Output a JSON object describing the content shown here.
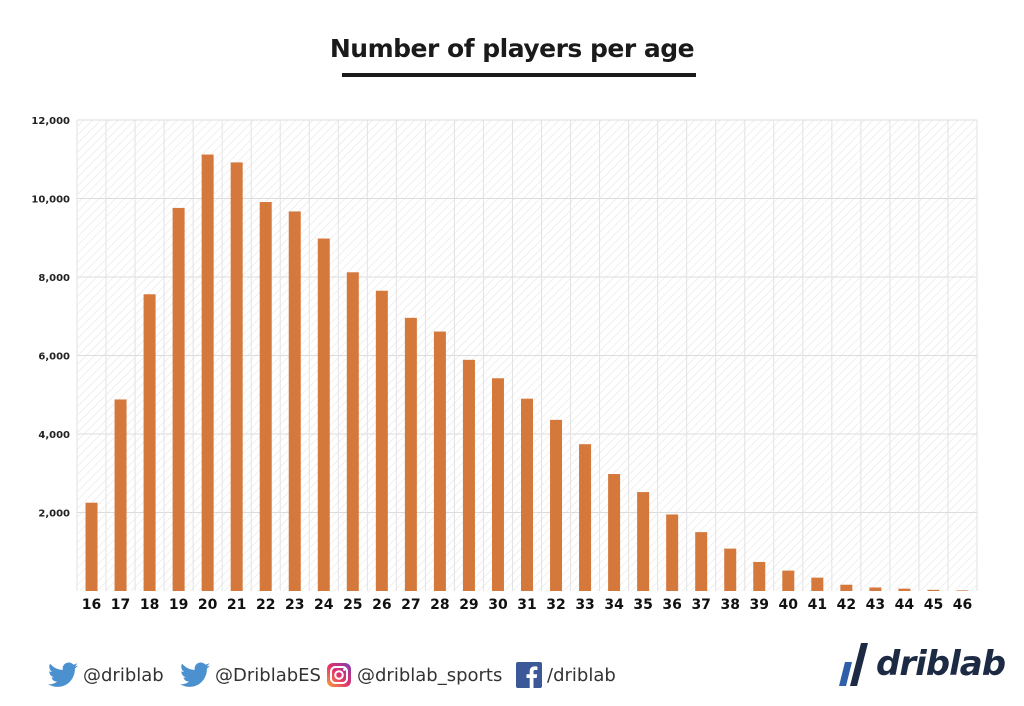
{
  "chart_data": {
    "type": "bar",
    "title": "Number of players per age",
    "xlabel": "",
    "ylabel": "",
    "categories": [
      "16",
      "17",
      "18",
      "19",
      "20",
      "21",
      "22",
      "23",
      "24",
      "25",
      "26",
      "27",
      "28",
      "29",
      "30",
      "31",
      "32",
      "33",
      "34",
      "35",
      "36",
      "37",
      "38",
      "39",
      "40",
      "41",
      "42",
      "43",
      "44",
      "45",
      "46"
    ],
    "values": [
      2250,
      4880,
      7560,
      9760,
      11120,
      10920,
      9910,
      9670,
      8980,
      8120,
      7650,
      6960,
      6610,
      5890,
      5420,
      4900,
      4360,
      3740,
      2980,
      2520,
      1950,
      1500,
      1080,
      740,
      520,
      340,
      160,
      90,
      60,
      30,
      15
    ],
    "ylim": [
      0,
      12000
    ],
    "yticks": [
      2000,
      4000,
      6000,
      8000,
      10000,
      12000
    ],
    "ytick_labels": [
      "2,000",
      "4,000",
      "6,000",
      "8,000",
      "10,000",
      "12,000"
    ],
    "grid": true,
    "bar_color": "#d4783c"
  },
  "footer": {
    "twitter_1": "@driblab",
    "twitter_2": "@DriblabES",
    "instagram": "@driblab_sports",
    "facebook": "/driblab",
    "brand": "driblab",
    "icons": [
      "twitter-icon",
      "twitter-icon",
      "instagram-icon",
      "facebook-icon"
    ],
    "colors": {
      "twitter": "#4b91d0",
      "facebook": "#3b5998",
      "brand_dark": "#1c2a44",
      "brand_blue": "#2f5fa8"
    }
  }
}
